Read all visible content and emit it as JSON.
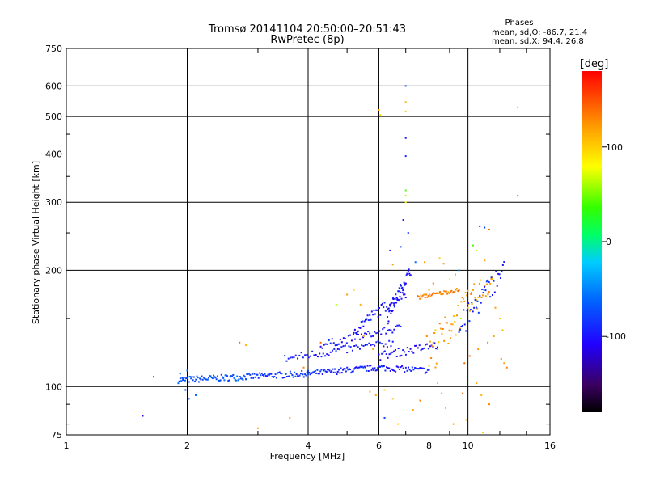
{
  "chart_data": {
    "type": "scatter",
    "title": "Tromsø 20141104 20:50:00–20:51:43",
    "subtitle": "RwPretec (8p)",
    "xlabel": "Frequency [MHz]",
    "ylabel": "Stationary phase Virtual Height [km]",
    "xscale": "log",
    "yscale": "log",
    "xlim": [
      1,
      16
    ],
    "ylim": [
      75,
      750
    ],
    "xticks": [
      {
        "v": 1,
        "label": "1"
      },
      {
        "v": 2,
        "label": "2"
      },
      {
        "v": 4,
        "label": "4"
      },
      {
        "v": 6,
        "label": "6"
      },
      {
        "v": 8,
        "label": "8"
      },
      {
        "v": 10,
        "label": "10"
      },
      {
        "v": 16,
        "label": "16"
      }
    ],
    "yticks": [
      {
        "v": 75,
        "label": "75"
      },
      {
        "v": 100,
        "label": "100"
      },
      {
        "v": 200,
        "label": "200"
      },
      {
        "v": 300,
        "label": "300"
      },
      {
        "v": 400,
        "label": "400"
      },
      {
        "v": 500,
        "label": "500"
      },
      {
        "v": 600,
        "label": "600"
      },
      {
        "v": 750,
        "label": "750"
      }
    ],
    "grid": true,
    "stats": {
      "heading": "Phases",
      "line_o": "mean, sd,O: -86.7, 21.4",
      "line_x": "mean, sd,X:  94.4, 26.8"
    },
    "colorbar": {
      "label": "[deg]",
      "range": [
        -180,
        180
      ],
      "ticks": [
        {
          "v": 100,
          "label": "100"
        },
        {
          "v": 0,
          "label": "0"
        },
        {
          "v": -100,
          "label": "-100"
        }
      ]
    },
    "points": [
      [
        1.55,
        84,
        -100
      ],
      [
        1.65,
        106,
        -70
      ],
      [
        1.92,
        108,
        -60
      ],
      [
        1.95,
        104,
        -80
      ],
      [
        1.98,
        98,
        -80
      ],
      [
        2.02,
        93,
        -70
      ],
      [
        2.1,
        95,
        -60
      ],
      [
        2.0,
        110,
        -60
      ],
      [
        2.7,
        130,
        140
      ],
      [
        2.8,
        128,
        110
      ],
      [
        3.0,
        78,
        120
      ],
      [
        3.6,
        83,
        120
      ],
      [
        3.9,
        112,
        130
      ],
      [
        4.3,
        130,
        140
      ],
      [
        4.7,
        163,
        60
      ],
      [
        5.0,
        173,
        120
      ],
      [
        5.2,
        178,
        90
      ],
      [
        5.4,
        163,
        110
      ],
      [
        5.5,
        135,
        120
      ],
      [
        5.8,
        125,
        110
      ],
      [
        6.0,
        520,
        120
      ],
      [
        6.05,
        505,
        90
      ],
      [
        5.9,
        95,
        120
      ],
      [
        5.7,
        97,
        110
      ],
      [
        6.2,
        98,
        100
      ],
      [
        6.5,
        93,
        110
      ],
      [
        7.0,
        600,
        -80
      ],
      [
        7.0,
        545,
        110
      ],
      [
        7.0,
        515,
        100
      ],
      [
        7.0,
        440,
        -100
      ],
      [
        7.0,
        395,
        -90
      ],
      [
        7.0,
        322,
        40
      ],
      [
        7.0,
        312,
        60
      ],
      [
        7.0,
        300,
        80
      ],
      [
        6.9,
        270,
        -100
      ],
      [
        7.1,
        250,
        -90
      ],
      [
        6.4,
        225,
        -100
      ],
      [
        6.5,
        207,
        120
      ],
      [
        6.8,
        230,
        -80
      ],
      [
        7.4,
        210,
        -60
      ],
      [
        7.8,
        210,
        120
      ],
      [
        8.5,
        215,
        100
      ],
      [
        8.7,
        208,
        130
      ],
      [
        9.5,
        200,
        -40
      ],
      [
        9.3,
        195,
        40
      ],
      [
        9.0,
        190,
        80
      ],
      [
        8.2,
        185,
        140
      ],
      [
        8.0,
        178,
        120
      ],
      [
        10.3,
        232,
        40
      ],
      [
        10.5,
        225,
        60
      ],
      [
        10.7,
        260,
        -100
      ],
      [
        11.0,
        258,
        -80
      ],
      [
        11.3,
        255,
        140
      ],
      [
        11.0,
        212,
        120
      ],
      [
        10.2,
        175,
        130
      ],
      [
        11.5,
        190,
        110
      ],
      [
        11.7,
        160,
        120
      ],
      [
        12.0,
        150,
        100
      ],
      [
        12.2,
        140,
        110
      ],
      [
        11.2,
        130,
        130
      ],
      [
        10.6,
        125,
        120
      ],
      [
        10.1,
        120,
        140
      ],
      [
        9.8,
        115,
        140
      ],
      [
        10.5,
        102,
        120
      ],
      [
        10.8,
        95,
        110
      ],
      [
        11.3,
        90,
        130
      ],
      [
        12.3,
        115,
        120
      ],
      [
        12.5,
        112,
        130
      ],
      [
        13.3,
        528,
        110
      ],
      [
        13.3,
        312,
        140
      ],
      [
        9.2,
        80,
        120
      ],
      [
        8.8,
        88,
        110
      ],
      [
        7.6,
        92,
        130
      ],
      [
        7.3,
        87,
        120
      ],
      [
        6.7,
        80,
        100
      ],
      [
        6.2,
        83,
        -80
      ],
      [
        9.9,
        82,
        110
      ],
      [
        10.9,
        76,
        100
      ],
      [
        9.7,
        96,
        140
      ],
      [
        8.6,
        96,
        120
      ],
      [
        8.4,
        102,
        110
      ],
      [
        7.9,
        135,
        130
      ],
      [
        8.3,
        140,
        100
      ],
      [
        9.1,
        145,
        120
      ],
      [
        9.6,
        150,
        60
      ],
      [
        10.0,
        160,
        100
      ],
      [
        11.6,
        135,
        120
      ],
      [
        12.1,
        118,
        130
      ]
    ]
  }
}
